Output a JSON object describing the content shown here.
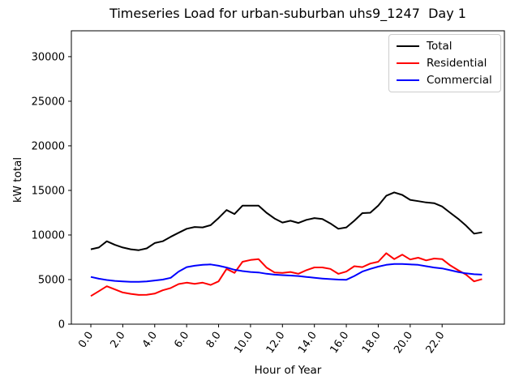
{
  "chart_data": {
    "type": "line",
    "title": "Timeseries Load for urban-suburban uhs9_1247  Day 1",
    "xlabel": "Hour of Year",
    "ylabel": "kW total",
    "grid": false,
    "legend_position": "upper right",
    "legend_edge_color": "#cccccc",
    "xlim": [
      -1.22,
      25.9
    ],
    "ylim": [
      0,
      32900
    ],
    "x_ticks": [
      0,
      2,
      4,
      6,
      8,
      10,
      12,
      14,
      16,
      18,
      20,
      22
    ],
    "x_tick_labels": [
      "0.0",
      "2.0",
      "4.0",
      "6.0",
      "8.0",
      "10.0",
      "12.0",
      "14.0",
      "16.0",
      "18.0",
      "20.0",
      "22.0"
    ],
    "y_ticks": [
      0,
      5000,
      10000,
      15000,
      20000,
      25000,
      30000
    ],
    "y_tick_labels": [
      "0",
      "5000",
      "10000",
      "15000",
      "20000",
      "25000",
      "30000"
    ],
    "x": [
      0,
      0.5,
      1,
      1.5,
      2,
      2.5,
      3,
      3.5,
      4,
      4.5,
      5,
      5.5,
      6,
      6.5,
      7,
      7.5,
      8,
      8.5,
      9,
      9.5,
      10,
      10.5,
      11,
      11.5,
      12,
      12.5,
      13,
      13.5,
      14,
      14.5,
      15,
      15.5,
      16,
      16.5,
      17,
      17.5,
      18,
      18.5,
      19,
      19.5,
      20,
      20.5,
      21,
      21.5,
      22,
      22.5,
      23,
      23.5,
      24,
      24.5
    ],
    "series": [
      {
        "name": "Total",
        "color": "#000000",
        "values": [
          8400,
          8600,
          9300,
          8900,
          8600,
          8400,
          8300,
          8500,
          9100,
          9300,
          9800,
          10250,
          10700,
          10900,
          10850,
          11100,
          11900,
          12800,
          12350,
          13300,
          13300,
          13300,
          12500,
          11850,
          11400,
          11600,
          11350,
          11700,
          11900,
          11800,
          11300,
          10700,
          10850,
          11600,
          12450,
          12500,
          13300,
          14400,
          14780,
          14500,
          13940,
          13800,
          13650,
          13570,
          13200,
          12500,
          11820,
          11050,
          10150,
          10300
        ]
      },
      {
        "name": "Residential",
        "color": "#ff0000",
        "values": [
          3150,
          3700,
          4250,
          3900,
          3550,
          3400,
          3280,
          3300,
          3430,
          3800,
          4050,
          4500,
          4650,
          4520,
          4650,
          4400,
          4800,
          6200,
          5750,
          7000,
          7200,
          7300,
          6350,
          5800,
          5750,
          5850,
          5650,
          6050,
          6360,
          6360,
          6200,
          5640,
          5900,
          6500,
          6400,
          6800,
          7000,
          7960,
          7300,
          7800,
          7250,
          7450,
          7150,
          7360,
          7300,
          6600,
          6050,
          5550,
          4800,
          5050
        ]
      },
      {
        "name": "Commercial",
        "color": "#0000ff",
        "values": [
          5300,
          5100,
          4950,
          4850,
          4800,
          4750,
          4750,
          4800,
          4900,
          5000,
          5200,
          5900,
          6400,
          6550,
          6650,
          6700,
          6550,
          6350,
          6100,
          5950,
          5850,
          5800,
          5650,
          5550,
          5500,
          5450,
          5400,
          5300,
          5200,
          5120,
          5050,
          5000,
          4980,
          5400,
          5900,
          6200,
          6450,
          6650,
          6750,
          6750,
          6700,
          6650,
          6500,
          6350,
          6250,
          6050,
          5850,
          5700,
          5600,
          5550
        ]
      }
    ]
  }
}
